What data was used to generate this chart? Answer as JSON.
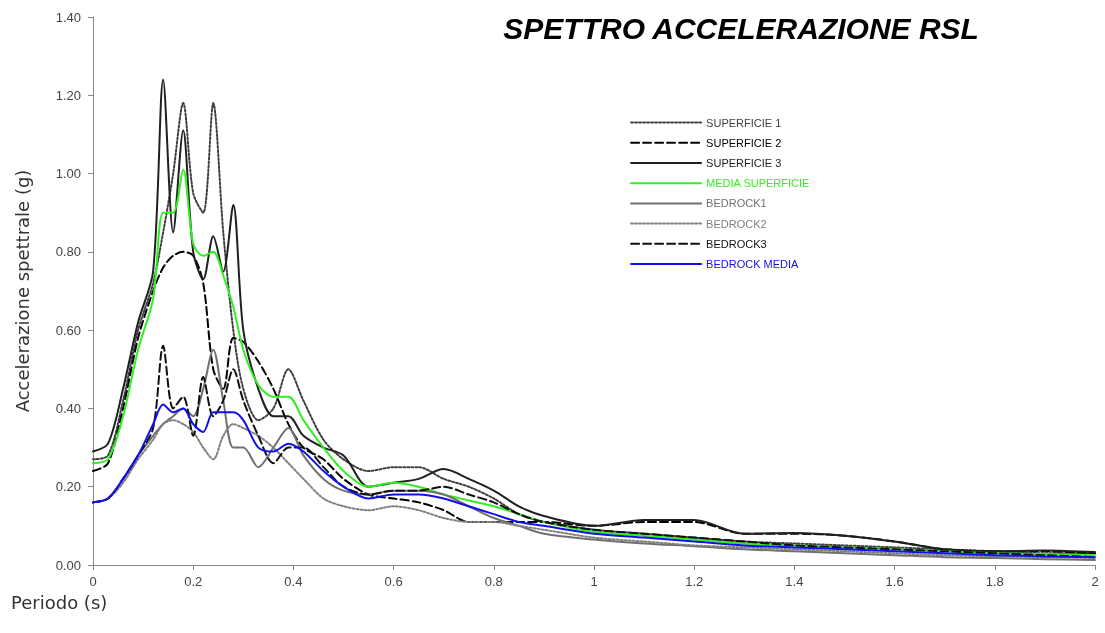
{
  "chart_data": {
    "type": "line",
    "title": "SPETTRO ACCELERAZIONE RSL",
    "xlabel": "Periodo (s)",
    "ylabel": "Accelerazione spettrale (g)",
    "x": [
      0,
      0.03,
      0.06,
      0.09,
      0.12,
      0.14,
      0.16,
      0.18,
      0.2,
      0.22,
      0.24,
      0.26,
      0.28,
      0.3,
      0.33,
      0.36,
      0.39,
      0.42,
      0.46,
      0.5,
      0.55,
      0.6,
      0.65,
      0.7,
      0.75,
      0.8,
      0.85,
      0.9,
      1.0,
      1.1,
      1.2,
      1.3,
      1.4,
      1.5,
      1.6,
      1.7,
      1.8,
      1.9,
      2.0
    ],
    "xlim": [
      0,
      2
    ],
    "xticks": [
      0,
      0.2,
      0.4,
      0.6,
      0.8,
      1,
      1.2,
      1.4,
      1.6,
      1.8,
      2
    ],
    "ylim": [
      0,
      1.4
    ],
    "yticks": [
      {
        "value": 0,
        "label": "0.00"
      },
      {
        "value": 0.2,
        "label": "0.20"
      },
      {
        "value": 0.4,
        "label": "0.40"
      },
      {
        "value": 0.6,
        "label": "0.60"
      },
      {
        "value": 0.8,
        "label": "0.80"
      },
      {
        "value": 1,
        "label": "1.00"
      },
      {
        "value": 1.2,
        "label": "1.20"
      },
      {
        "value": 1.4,
        "label": "1.40"
      }
    ],
    "grid": false,
    "legend": "top right",
    "marker": "none",
    "series": [
      {
        "name": "SUPERFICIE 1",
        "color": "#404040",
        "line_style": "dotted",
        "values": [
          0.27,
          0.28,
          0.42,
          0.6,
          0.72,
          0.85,
          1.0,
          1.18,
          0.95,
          0.9,
          1.18,
          0.85,
          0.6,
          0.45,
          0.37,
          0.4,
          0.5,
          0.42,
          0.32,
          0.27,
          0.24,
          0.25,
          0.25,
          0.22,
          0.2,
          0.17,
          0.13,
          0.11,
          0.09,
          0.08,
          0.07,
          0.06,
          0.055,
          0.05,
          0.045,
          0.04,
          0.035,
          0.03,
          0.03
        ]
      },
      {
        "name": "SUPERFICIE 2",
        "color": "#000000",
        "line_style": "dashed",
        "values": [
          0.24,
          0.26,
          0.4,
          0.58,
          0.7,
          0.76,
          0.79,
          0.8,
          0.79,
          0.72,
          0.5,
          0.45,
          0.58,
          0.57,
          0.52,
          0.45,
          0.36,
          0.3,
          0.27,
          0.22,
          0.18,
          0.17,
          0.16,
          0.14,
          0.11,
          0.11,
          0.11,
          0.11,
          0.1,
          0.11,
          0.11,
          0.08,
          0.08,
          0.075,
          0.06,
          0.04,
          0.035,
          0.035,
          0.03
        ]
      },
      {
        "name": "SUPERFICIE 3",
        "color": "#202020",
        "line_style": "solid",
        "values": [
          0.29,
          0.31,
          0.45,
          0.62,
          0.75,
          1.24,
          0.85,
          1.11,
          0.8,
          0.73,
          0.84,
          0.75,
          0.92,
          0.6,
          0.45,
          0.38,
          0.38,
          0.33,
          0.3,
          0.28,
          0.2,
          0.21,
          0.22,
          0.245,
          0.22,
          0.19,
          0.15,
          0.125,
          0.1,
          0.115,
          0.115,
          0.08,
          0.082,
          0.075,
          0.06,
          0.04,
          0.035,
          0.037,
          0.033
        ]
      },
      {
        "name": "MEDIA SUPERFICIE",
        "color": "#33ee22",
        "line_style": "solid",
        "values": [
          0.26,
          0.27,
          0.38,
          0.55,
          0.68,
          0.9,
          0.9,
          1.01,
          0.82,
          0.79,
          0.8,
          0.74,
          0.66,
          0.55,
          0.46,
          0.43,
          0.43,
          0.37,
          0.3,
          0.24,
          0.2,
          0.21,
          0.2,
          0.18,
          0.165,
          0.15,
          0.13,
          0.11,
          0.085,
          0.075,
          0.065,
          0.055,
          0.05,
          0.045,
          0.04,
          0.035,
          0.03,
          0.028,
          0.025
        ]
      },
      {
        "name": "BEDROCK1",
        "color": "#707070",
        "line_style": "solid",
        "values": [
          0.16,
          0.17,
          0.22,
          0.28,
          0.33,
          0.36,
          0.38,
          0.4,
          0.38,
          0.45,
          0.55,
          0.42,
          0.3,
          0.3,
          0.25,
          0.3,
          0.35,
          0.28,
          0.22,
          0.19,
          0.18,
          0.19,
          0.19,
          0.18,
          0.15,
          0.12,
          0.1,
          0.08,
          0.065,
          0.055,
          0.048,
          0.04,
          0.035,
          0.03,
          0.025,
          0.02,
          0.018,
          0.015,
          0.013
        ]
      },
      {
        "name": "BEDROCK2",
        "color": "#808080",
        "line_style": "dotted",
        "values": [
          0.16,
          0.17,
          0.21,
          0.27,
          0.32,
          0.36,
          0.37,
          0.36,
          0.34,
          0.3,
          0.27,
          0.33,
          0.36,
          0.35,
          0.33,
          0.3,
          0.26,
          0.22,
          0.17,
          0.15,
          0.14,
          0.15,
          0.14,
          0.12,
          0.11,
          0.11,
          0.1,
          0.09,
          0.07,
          0.06,
          0.05,
          0.045,
          0.04,
          0.035,
          0.03,
          0.025,
          0.022,
          0.02,
          0.018
        ]
      },
      {
        "name": "BEDROCK3",
        "color": "#101010",
        "line_style": "dashed",
        "values": [
          0.16,
          0.17,
          0.22,
          0.28,
          0.35,
          0.56,
          0.4,
          0.43,
          0.33,
          0.48,
          0.38,
          0.42,
          0.5,
          0.42,
          0.33,
          0.26,
          0.3,
          0.3,
          0.25,
          0.2,
          0.18,
          0.19,
          0.19,
          0.2,
          0.18,
          0.16,
          0.13,
          0.11,
          0.09,
          0.08,
          0.07,
          0.06,
          0.05,
          0.045,
          0.04,
          0.035,
          0.03,
          0.025,
          0.02
        ]
      },
      {
        "name": "BEDROCK MEDIA",
        "color": "#1010ee",
        "line_style": "solid",
        "values": [
          0.16,
          0.17,
          0.22,
          0.28,
          0.36,
          0.41,
          0.39,
          0.4,
          0.36,
          0.34,
          0.39,
          0.39,
          0.39,
          0.37,
          0.3,
          0.29,
          0.31,
          0.29,
          0.24,
          0.2,
          0.17,
          0.18,
          0.18,
          0.17,
          0.15,
          0.13,
          0.11,
          0.1,
          0.08,
          0.07,
          0.06,
          0.05,
          0.045,
          0.04,
          0.035,
          0.03,
          0.025,
          0.022,
          0.02
        ]
      }
    ]
  }
}
